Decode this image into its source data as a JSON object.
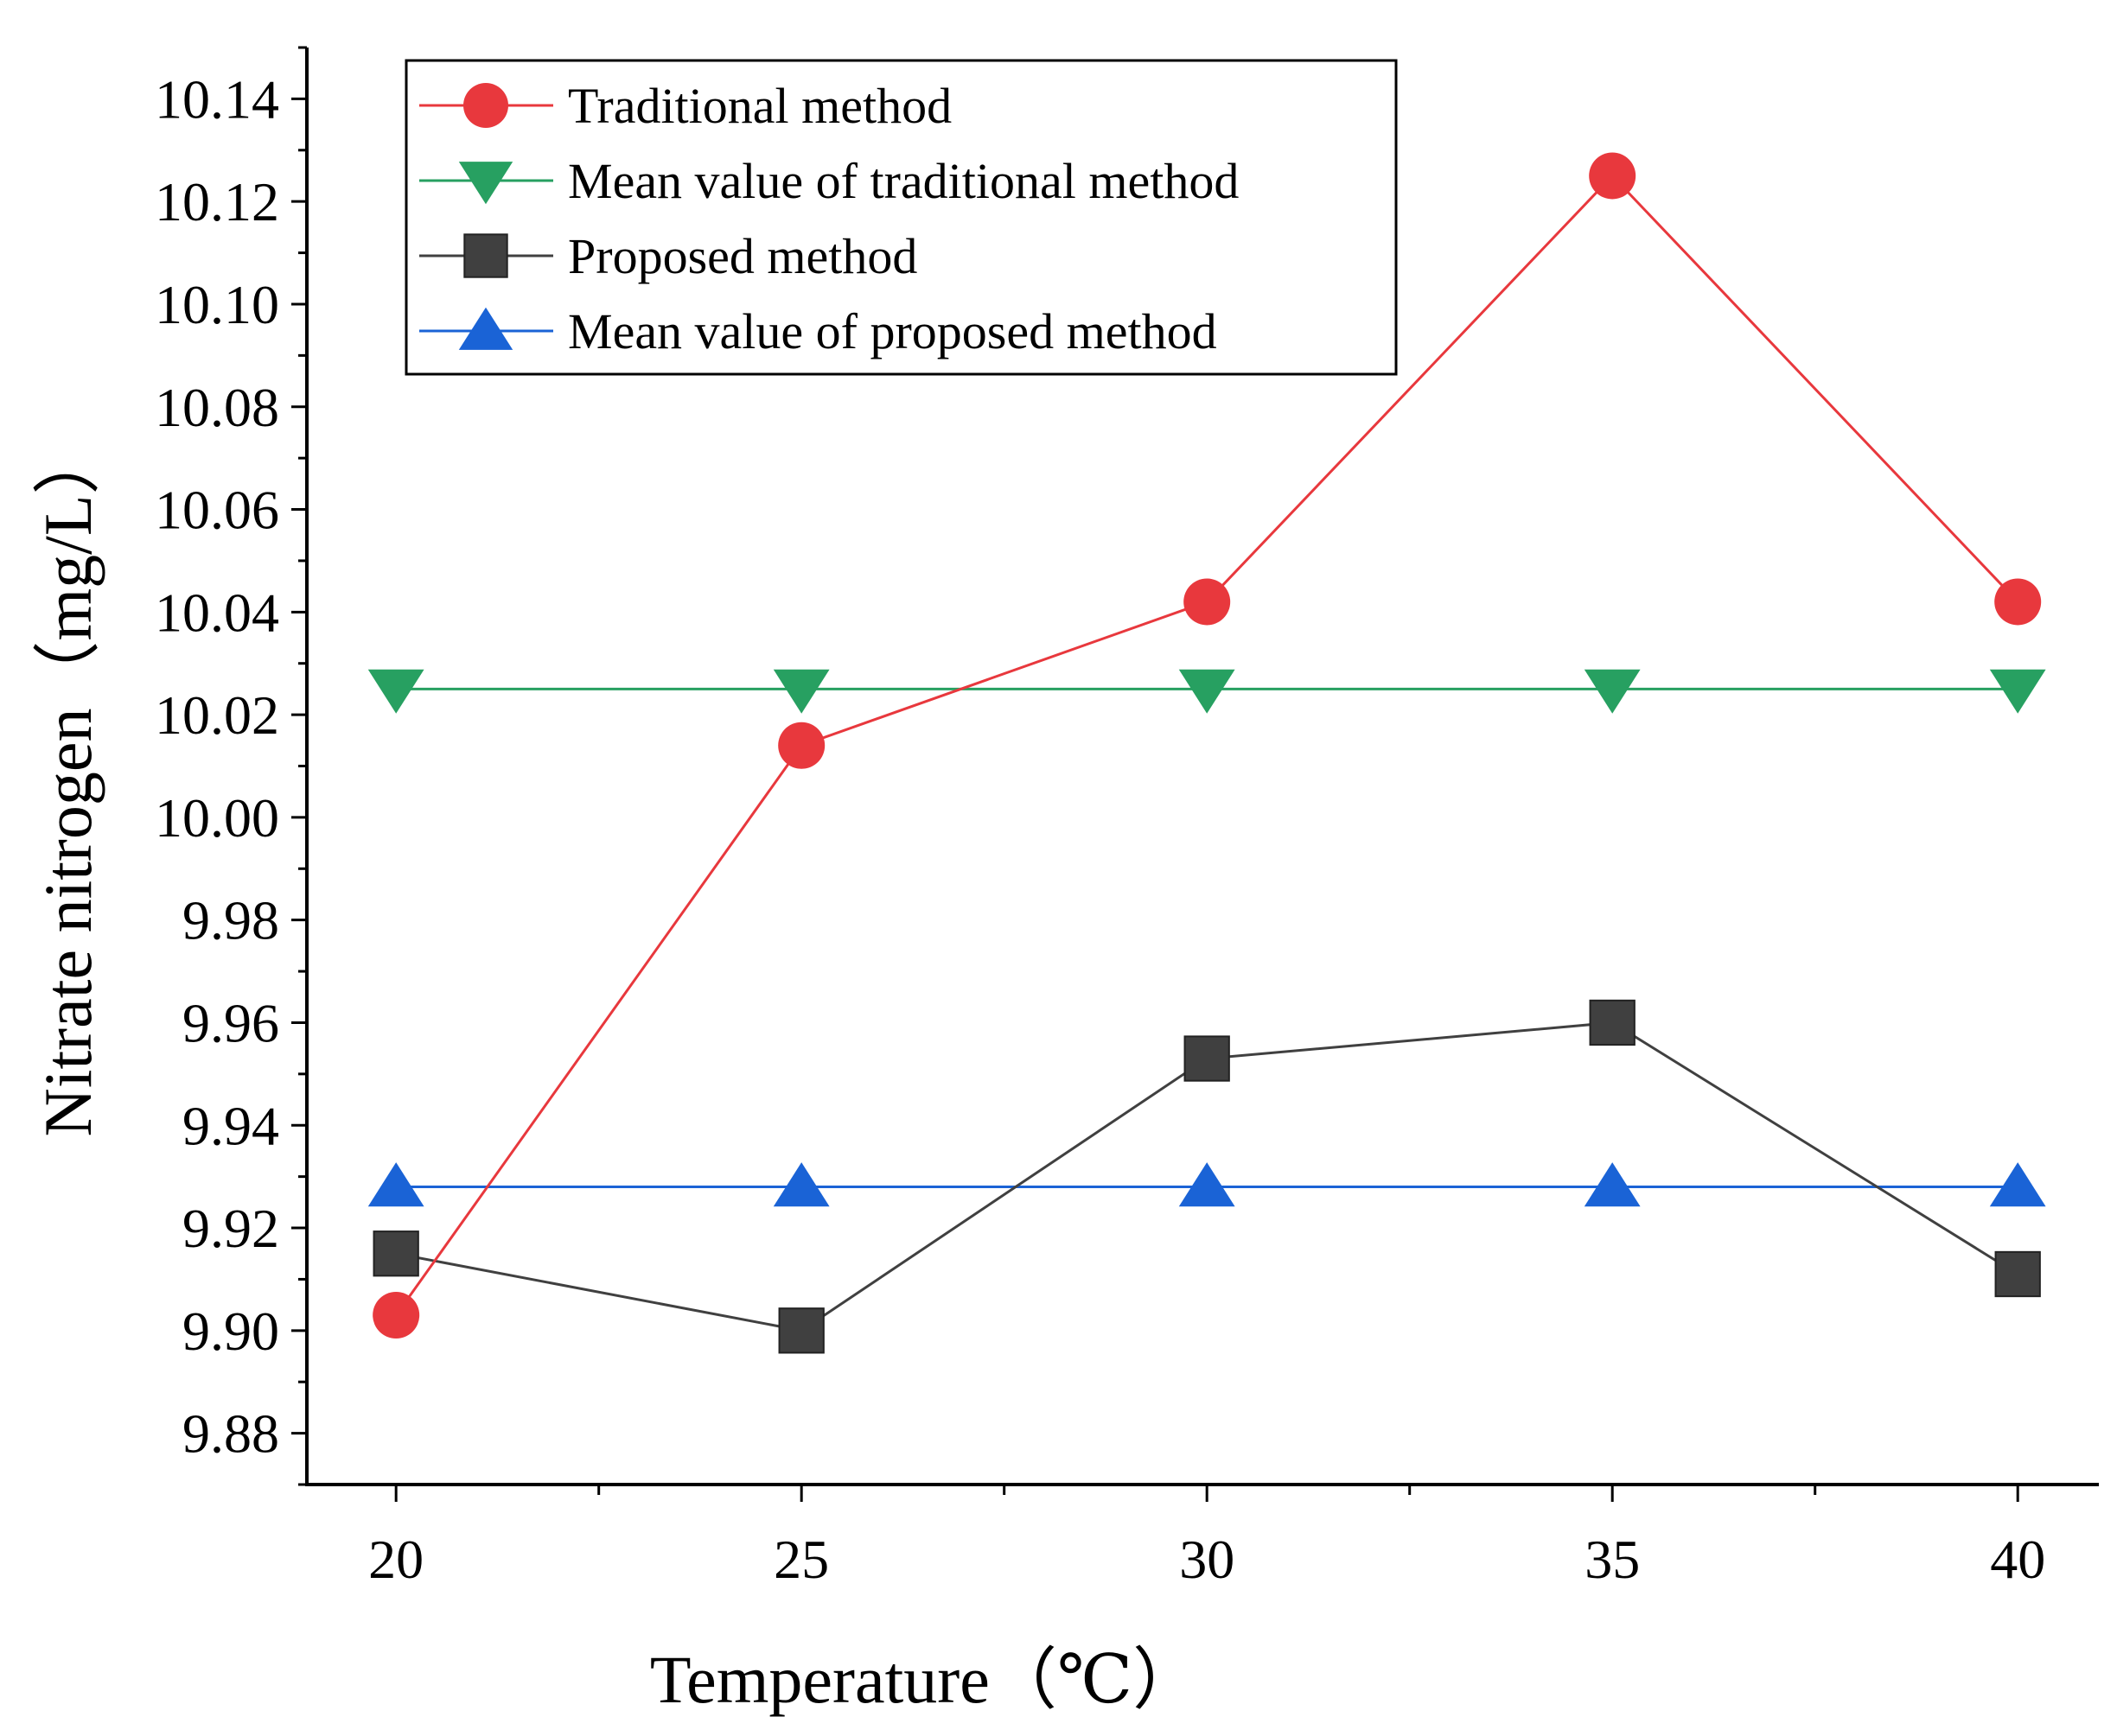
{
  "chart_data": {
    "type": "line",
    "xlabel": "Temperature（℃）",
    "ylabel": "Nitrate nitrogen（mg/L）",
    "x": [
      20,
      25,
      30,
      35,
      40
    ],
    "xlim": [
      18.9,
      41
    ],
    "ylim": [
      9.87,
      10.15
    ],
    "x_ticks": [
      "20",
      "25",
      "30",
      "35",
      "40"
    ],
    "y_ticks": [
      "9.88",
      "9.90",
      "9.92",
      "9.94",
      "9.96",
      "9.98",
      "10.00",
      "10.02",
      "10.04",
      "10.06",
      "10.08",
      "10.10",
      "10.12",
      "10.14"
    ],
    "grid": false,
    "legend_position": "top-left",
    "series": [
      {
        "name": "Traditional method",
        "marker": "circle",
        "color": "#e8383d",
        "values": [
          9.903,
          10.014,
          10.042,
          10.125,
          10.042
        ]
      },
      {
        "name": "Mean value of traditional method",
        "marker": "triangle-down",
        "color": "#27a061",
        "values": [
          10.025,
          10.025,
          10.025,
          10.025,
          10.025
        ]
      },
      {
        "name": "Proposed method",
        "marker": "square",
        "color": "#404040",
        "values": [
          9.915,
          9.9,
          9.953,
          9.96,
          9.911
        ]
      },
      {
        "name": "Mean value of proposed method",
        "marker": "triangle-up",
        "color": "#1a63d6",
        "values": [
          9.928,
          9.928,
          9.928,
          9.928,
          9.928
        ]
      }
    ]
  }
}
